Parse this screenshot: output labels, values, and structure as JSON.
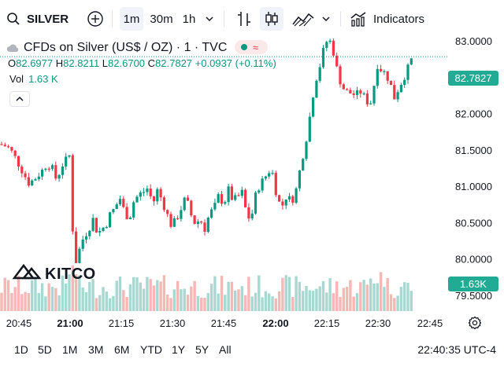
{
  "toolbar": {
    "symbol": "SILVER",
    "intervals": [
      "1m",
      "30m",
      "1h"
    ],
    "active_interval": "1m",
    "indicators_label": "Indicators"
  },
  "legend": {
    "title": "CFDs on Silver (US$ / OZ) · 1 · TVC",
    "o_label": "O",
    "o": "82.6977",
    "h_label": "H",
    "h": "82.8211",
    "l_label": "L",
    "l": "82.6700",
    "c_label": "C",
    "c": "82.7827",
    "change": "+0.0937 (+0.11%)",
    "vol_label": "Vol",
    "vol": "1.63 K"
  },
  "chart_data": {
    "type": "candlestick",
    "symbol": "SILVER",
    "interval": "1m",
    "watermark": "KITCO",
    "y_ticks": [
      "83.0000",
      "82.5000",
      "82.0000",
      "81.5000",
      "81.0000",
      "80.5000",
      "80.0000",
      "79.5000"
    ],
    "ylim": [
      79.5,
      83.0
    ],
    "x_ticks": [
      "20:45",
      "21:00",
      "21:15",
      "21:30",
      "21:45",
      "22:00",
      "22:15",
      "22:30",
      "22:45"
    ],
    "last_price": "82.7827",
    "last_volume": "1.63K",
    "series_path": [
      [
        0,
        81.58
      ],
      [
        8,
        81.55
      ],
      [
        12,
        81.52
      ],
      [
        18,
        81.42
      ],
      [
        24,
        81.3
      ],
      [
        30,
        81.18
      ],
      [
        36,
        81.05
      ],
      [
        42,
        81.08
      ],
      [
        48,
        81.15
      ],
      [
        54,
        81.22
      ],
      [
        60,
        81.32
      ],
      [
        66,
        81.25
      ],
      [
        72,
        81.08
      ],
      [
        78,
        81.28
      ],
      [
        84,
        81.36
      ],
      [
        88,
        81.42
      ],
      [
        92,
        80.45
      ],
      [
        96,
        79.95
      ],
      [
        100,
        80.1
      ],
      [
        106,
        80.3
      ],
      [
        112,
        80.4
      ],
      [
        118,
        80.55
      ],
      [
        124,
        80.35
      ],
      [
        130,
        80.42
      ],
      [
        136,
        80.5
      ],
      [
        140,
        80.62
      ],
      [
        146,
        80.7
      ],
      [
        152,
        80.85
      ],
      [
        158,
        80.65
      ],
      [
        164,
        80.55
      ],
      [
        170,
        80.8
      ],
      [
        176,
        80.88
      ],
      [
        182,
        80.92
      ],
      [
        188,
        80.98
      ],
      [
        194,
        80.75
      ],
      [
        200,
        80.95
      ],
      [
        206,
        80.8
      ],
      [
        212,
        80.62
      ],
      [
        218,
        80.45
      ],
      [
        224,
        80.55
      ],
      [
        230,
        80.7
      ],
      [
        236,
        80.85
      ],
      [
        242,
        80.62
      ],
      [
        248,
        80.48
      ],
      [
        254,
        80.55
      ],
      [
        260,
        80.42
      ],
      [
        266,
        80.62
      ],
      [
        272,
        80.7
      ],
      [
        278,
        80.88
      ],
      [
        284,
        80.75
      ],
      [
        290,
        80.95
      ],
      [
        296,
        80.8
      ],
      [
        302,
        80.85
      ],
      [
        308,
        80.92
      ],
      [
        314,
        80.55
      ],
      [
        320,
        80.62
      ],
      [
        326,
        80.95
      ],
      [
        332,
        81.05
      ],
      [
        338,
        81.15
      ],
      [
        344,
        81.25
      ],
      [
        348,
        81.1
      ],
      [
        352,
        80.82
      ],
      [
        358,
        80.72
      ],
      [
        364,
        80.88
      ],
      [
        370,
        80.78
      ],
      [
        376,
        80.95
      ],
      [
        382,
        81.3
      ],
      [
        388,
        81.6
      ],
      [
        394,
        82.0
      ],
      [
        400,
        82.45
      ],
      [
        404,
        82.55
      ],
      [
        408,
        82.75
      ],
      [
        412,
        82.92
      ],
      [
        416,
        83.02
      ],
      [
        420,
        82.98
      ],
      [
        424,
        82.82
      ],
      [
        428,
        82.6
      ],
      [
        432,
        82.45
      ],
      [
        436,
        82.35
      ],
      [
        440,
        82.3
      ],
      [
        446,
        82.28
      ],
      [
        452,
        82.25
      ],
      [
        458,
        82.3
      ],
      [
        464,
        82.2
      ],
      [
        470,
        82.12
      ],
      [
        476,
        82.45
      ],
      [
        480,
        82.72
      ],
      [
        484,
        82.6
      ],
      [
        490,
        82.55
      ],
      [
        496,
        82.4
      ],
      [
        500,
        82.2
      ],
      [
        506,
        82.35
      ],
      [
        512,
        82.48
      ],
      [
        518,
        82.62
      ],
      [
        524,
        82.78
      ]
    ]
  },
  "bottom": {
    "ranges": [
      "1D",
      "5D",
      "1M",
      "3M",
      "6M",
      "YTD",
      "1Y",
      "5Y",
      "All"
    ],
    "clock": "22:40:35 UTC-4"
  },
  "colors": {
    "up": "#089981",
    "down": "#f23645",
    "vol_up": "#a7d9d2",
    "vol_down": "#f6b7b5"
  }
}
